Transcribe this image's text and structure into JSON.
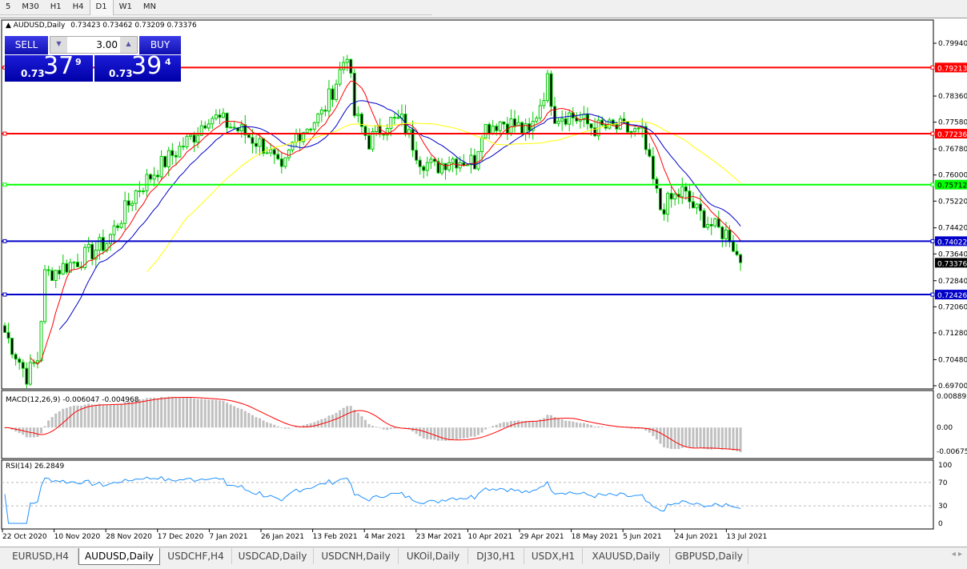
{
  "toolbar": {
    "timeframes": [
      "5",
      "M30",
      "H1",
      "H4",
      "D1",
      "W1",
      "MN"
    ]
  },
  "chart": {
    "header": "AUDUSD,Daily",
    "ohlc": "0.73423 0.73462 0.73209 0.73376",
    "trade_panel": {
      "sell_label": "SELL",
      "buy_label": "BUY",
      "lot": "3.00",
      "sell_prefix": "0.73",
      "sell_big": "37",
      "sell_sup": "9",
      "buy_prefix": "0.73",
      "buy_big": "39",
      "buy_sup": "4"
    },
    "price_axis": [
      "0.79940",
      "0.78360",
      "0.77580",
      "0.76780",
      "0.76000",
      "0.75220",
      "0.74420",
      "0.73640",
      "0.72840",
      "0.72060",
      "0.71280",
      "0.70480",
      "0.69700"
    ],
    "axis_range": [
      0.697,
      0.7994
    ],
    "levels": [
      {
        "price": "0.79213",
        "color": "#ff0000"
      },
      {
        "price": "0.77236",
        "color": "#ff0000"
      },
      {
        "price": "0.75712",
        "color": "#00ff00"
      },
      {
        "price": "0.74022",
        "color": "#0000c8"
      },
      {
        "price": "0.72426",
        "color": "#0000c8"
      }
    ],
    "current_price": "0.73376",
    "bull_color": "#00c800",
    "bear_color": "#00c800",
    "ma_colors": [
      "#ff0000",
      "#0000c8",
      "#ffff00"
    ],
    "price_path": [
      [
        0,
        0.713
      ],
      [
        6,
        0.7
      ],
      [
        9,
        0.705
      ],
      [
        11,
        0.73
      ],
      [
        21,
        0.735
      ],
      [
        28,
        0.74
      ],
      [
        36,
        0.755
      ],
      [
        42,
        0.762
      ],
      [
        52,
        0.772
      ],
      [
        56,
        0.778
      ],
      [
        65,
        0.773
      ],
      [
        72,
        0.768
      ],
      [
        76,
        0.76
      ],
      [
        80,
        0.772
      ],
      [
        87,
        0.778
      ],
      [
        91,
        0.788
      ],
      [
        94,
        0.797
      ],
      [
        96,
        0.778
      ],
      [
        100,
        0.77
      ],
      [
        105,
        0.776
      ],
      [
        109,
        0.776
      ],
      [
        114,
        0.765
      ],
      [
        118,
        0.762
      ],
      [
        122,
        0.765
      ],
      [
        129,
        0.764
      ],
      [
        131,
        0.774
      ],
      [
        136,
        0.776
      ],
      [
        140,
        0.775
      ],
      [
        144,
        0.772
      ],
      [
        149,
        0.788
      ],
      [
        151,
        0.778
      ],
      [
        155,
        0.778
      ],
      [
        162,
        0.774
      ],
      [
        169,
        0.774
      ],
      [
        175,
        0.772
      ],
      [
        178,
        0.758
      ],
      [
        180,
        0.75
      ],
      [
        186,
        0.755
      ],
      [
        190,
        0.749
      ],
      [
        195,
        0.744
      ],
      [
        199,
        0.742
      ],
      [
        201,
        0.736
      ],
      [
        202,
        0.7338
      ]
    ]
  },
  "macd": {
    "label": "MACD(12,26,9) -0.006047 -0.004968",
    "axis": [
      "0.008892",
      "0.00",
      "-0.006758"
    ]
  },
  "rsi": {
    "label": "RSI(14) 26.2849",
    "axis": [
      "100",
      "70",
      "30",
      "0"
    ]
  },
  "time_axis": [
    "22 Oct 2020",
    "10 Nov 2020",
    "28 Nov 2020",
    "17 Dec 2020",
    "7 Jan 2021",
    "26 Jan 2021",
    "13 Feb 2021",
    "4 Mar 2021",
    "23 Mar 2021",
    "10 Apr 2021",
    "29 Apr 2021",
    "18 May 2021",
    "5 Jun 2021",
    "24 Jun 2021",
    "13 Jul 2021"
  ],
  "tabs": [
    {
      "label": "EURUSD,H4"
    },
    {
      "label": "AUDUSD,Daily",
      "active": true
    },
    {
      "label": "USDCHF,H4"
    },
    {
      "label": "USDCAD,Daily"
    },
    {
      "label": "USDCNH,Daily"
    },
    {
      "label": "UKOil,Daily"
    },
    {
      "label": "DJ30,H1"
    },
    {
      "label": "USDX,H1"
    },
    {
      "label": "XAUUSD,Daily"
    },
    {
      "label": "GBPUSD,Daily"
    }
  ]
}
